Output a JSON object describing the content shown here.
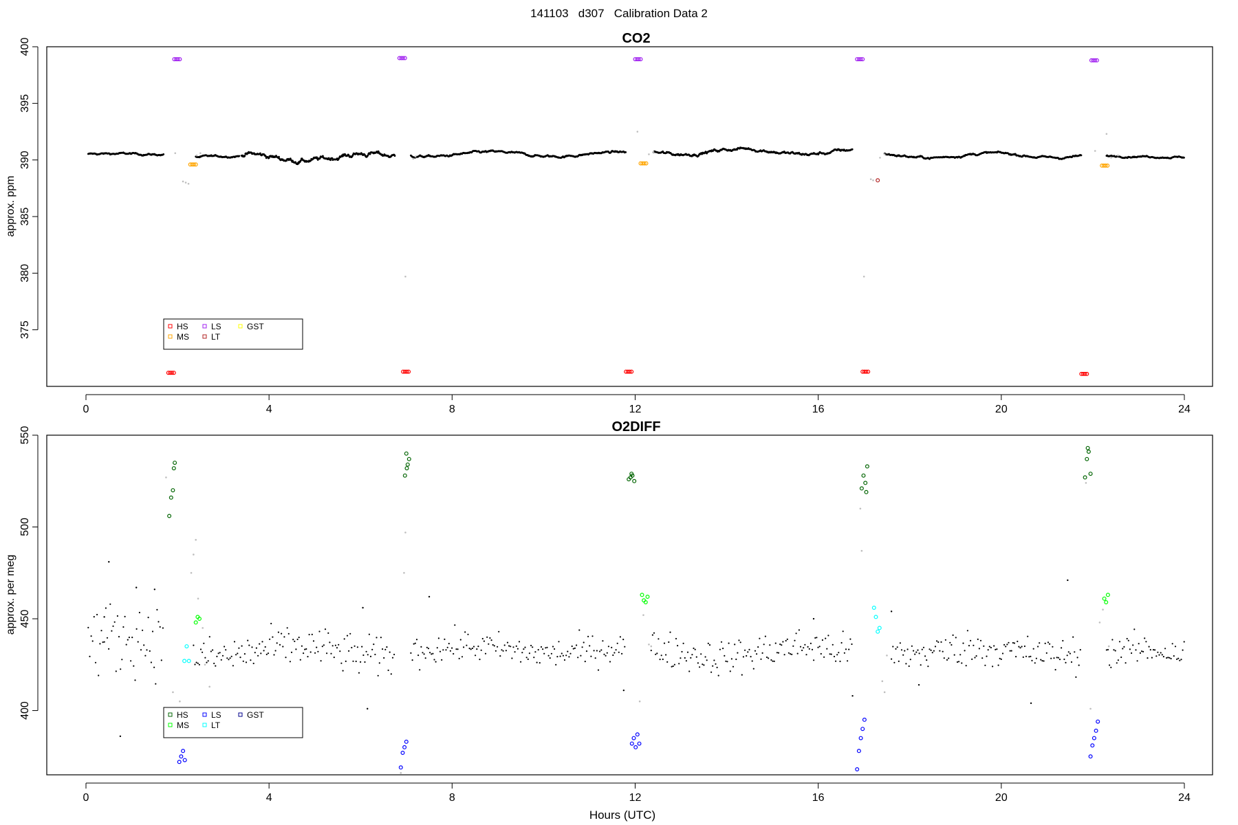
{
  "title": "141103   d307   Calibration Data 2",
  "chart_data": [
    {
      "type": "scatter",
      "title": "CO2",
      "xlabel": "",
      "ylabel": "approx. ppm",
      "xlim": [
        0,
        24
      ],
      "ylim": [
        370,
        400
      ],
      "xticks": [
        0,
        4,
        8,
        12,
        16,
        20,
        24
      ],
      "yticks": [
        375,
        380,
        385,
        390,
        395,
        400
      ],
      "grid": false,
      "legend_position": "bottom-left",
      "legend": [
        {
          "name": "HS",
          "color": "#ff0000"
        },
        {
          "name": "MS",
          "color": "#ffa500"
        },
        {
          "name": "LS",
          "color": "#a020f0"
        },
        {
          "name": "LT",
          "color": "#b22222"
        },
        {
          "name": "GST",
          "color": "#ffff00"
        }
      ],
      "colors": {
        "ambient": "#000000",
        "flag": "#bebebe",
        "HS": "#ff0000",
        "MS": "#ffa500",
        "LS": "#a020f0",
        "LT": "#b22222",
        "GST": "#ffff00"
      },
      "ambient_segments": [
        {
          "x": [
            0.05,
            1.7
          ],
          "y": 390.5,
          "noise": 0.06,
          "wave": 0.05
        },
        {
          "x": [
            2.4,
            3.35
          ],
          "y": 390.3,
          "noise": 0.06,
          "wave": 0.05
        },
        {
          "x": [
            3.4,
            6.75
          ],
          "y": 390.25,
          "noise": 0.15,
          "wave": 0.3
        },
        {
          "x": [
            7.1,
            11.8
          ],
          "y": 390.5,
          "noise": 0.07,
          "wave": 0.2
        },
        {
          "x": [
            12.4,
            16.75
          ],
          "y": 390.75,
          "noise": 0.1,
          "wave": 0.25
        },
        {
          "x": [
            17.45,
            21.75
          ],
          "y": 390.4,
          "noise": 0.07,
          "wave": 0.2
        },
        {
          "x": [
            22.3,
            24.0
          ],
          "y": 390.3,
          "noise": 0.05,
          "wave": 0.05
        }
      ],
      "flagged_points": [
        {
          "x": 1.95,
          "y": 390.6
        },
        {
          "x": 2.12,
          "y": 388.1
        },
        {
          "x": 2.18,
          "y": 388.0
        },
        {
          "x": 2.24,
          "y": 387.9
        },
        {
          "x": 2.42,
          "y": 390.4
        },
        {
          "x": 2.5,
          "y": 390.6
        },
        {
          "x": 6.98,
          "y": 379.7
        },
        {
          "x": 7.15,
          "y": 390.1
        },
        {
          "x": 7.2,
          "y": 390.3
        },
        {
          "x": 12.05,
          "y": 392.5
        },
        {
          "x": 12.3,
          "y": 390.5
        },
        {
          "x": 12.4,
          "y": 390.7
        },
        {
          "x": 17.0,
          "y": 379.7
        },
        {
          "x": 17.15,
          "y": 388.3
        },
        {
          "x": 17.2,
          "y": 388.2
        },
        {
          "x": 17.35,
          "y": 390.2
        },
        {
          "x": 17.45,
          "y": 390.5
        },
        {
          "x": 22.05,
          "y": 390.8
        },
        {
          "x": 22.3,
          "y": 392.3
        },
        {
          "x": 22.4,
          "y": 390.2
        },
        {
          "x": 22.55,
          "y": 390.4
        }
      ],
      "calibration_series": [
        {
          "name": "HS",
          "x": [
            1.8,
            1.84,
            1.88,
            1.92,
            6.93,
            6.97,
            7.01,
            7.05,
            11.8,
            11.84,
            11.88,
            11.92,
            16.97,
            17.01,
            17.05,
            17.09,
            21.75,
            21.79,
            21.83,
            21.87
          ],
          "y": [
            371.2,
            371.2,
            371.2,
            371.2,
            371.3,
            371.3,
            371.3,
            371.3,
            371.3,
            371.3,
            371.3,
            371.3,
            371.3,
            371.3,
            371.3,
            371.3,
            371.1,
            371.1,
            371.1,
            371.1
          ]
        },
        {
          "name": "LS",
          "x": [
            1.93,
            1.97,
            2.01,
            2.05,
            6.85,
            6.89,
            6.93,
            6.97,
            12.0,
            12.04,
            12.08,
            12.12,
            16.85,
            16.89,
            16.93,
            16.97,
            21.97,
            22.01,
            22.05,
            22.09
          ],
          "y": [
            398.9,
            398.9,
            398.9,
            398.9,
            399.0,
            399.0,
            399.0,
            399.0,
            398.9,
            398.9,
            398.9,
            398.9,
            398.9,
            398.9,
            398.9,
            398.9,
            398.8,
            398.8,
            398.8,
            398.8
          ]
        },
        {
          "name": "MS",
          "x": [
            2.28,
            2.32,
            2.36,
            2.4,
            12.12,
            12.16,
            12.2,
            12.24,
            22.2,
            22.24,
            22.28,
            22.32
          ],
          "y": [
            389.6,
            389.6,
            389.6,
            389.6,
            389.7,
            389.7,
            389.7,
            389.7,
            389.5,
            389.5,
            389.5,
            389.5
          ]
        },
        {
          "name": "LT",
          "x": [
            17.3
          ],
          "y": [
            388.2
          ]
        }
      ]
    },
    {
      "type": "scatter",
      "title": "O2DIFF",
      "xlabel": "Hours (UTC)",
      "ylabel": "approx. per meg",
      "xlim": [
        0,
        24
      ],
      "ylim": [
        365,
        550
      ],
      "xticks": [
        0,
        4,
        8,
        12,
        16,
        20,
        24
      ],
      "yticks": [
        400,
        450,
        500,
        550
      ],
      "grid": false,
      "legend_position": "bottom-left",
      "legend": [
        {
          "name": "HS",
          "color": "#006400"
        },
        {
          "name": "MS",
          "color": "#00ff00"
        },
        {
          "name": "LS",
          "color": "#0000ff"
        },
        {
          "name": "LT",
          "color": "#00ffff"
        },
        {
          "name": "GST",
          "color": "#00008b"
        }
      ],
      "colors": {
        "ambient": "#000000",
        "flag": "#bebebe",
        "HS": "#006400",
        "MS": "#00ff00",
        "LS": "#0000ff",
        "LT": "#00ffff",
        "GST": "#00008b"
      },
      "ambient_segments": [
        {
          "x": [
            0.05,
            1.7
          ],
          "y": 437,
          "noise": 14,
          "wave": 3
        },
        {
          "x": [
            2.35,
            6.75
          ],
          "y": 432,
          "noise": 8,
          "wave": 3
        },
        {
          "x": [
            7.1,
            11.8
          ],
          "y": 433,
          "noise": 6,
          "wave": 2
        },
        {
          "x": [
            12.35,
            16.75
          ],
          "y": 432,
          "noise": 7,
          "wave": 3
        },
        {
          "x": [
            17.6,
            21.75
          ],
          "y": 432,
          "noise": 7,
          "wave": 2
        },
        {
          "x": [
            22.3,
            24.0
          ],
          "y": 431,
          "noise": 6,
          "wave": 2
        }
      ],
      "outlier_points": [
        {
          "x": 0.5,
          "y": 481
        },
        {
          "x": 0.75,
          "y": 386
        },
        {
          "x": 0.4,
          "y": 451
        },
        {
          "x": 1.1,
          "y": 467
        },
        {
          "x": 1.5,
          "y": 466
        },
        {
          "x": 6.15,
          "y": 401
        },
        {
          "x": 6.05,
          "y": 456
        },
        {
          "x": 7.5,
          "y": 462
        },
        {
          "x": 11.75,
          "y": 411
        },
        {
          "x": 15.9,
          "y": 450
        },
        {
          "x": 16.75,
          "y": 408
        },
        {
          "x": 17.6,
          "y": 454
        },
        {
          "x": 18.2,
          "y": 414
        },
        {
          "x": 20.65,
          "y": 404
        },
        {
          "x": 21.45,
          "y": 471
        }
      ],
      "flagged_points": [
        {
          "x": 1.75,
          "y": 527
        },
        {
          "x": 1.9,
          "y": 410
        },
        {
          "x": 2.05,
          "y": 405
        },
        {
          "x": 2.3,
          "y": 475
        },
        {
          "x": 2.35,
          "y": 485
        },
        {
          "x": 2.4,
          "y": 493
        },
        {
          "x": 2.45,
          "y": 461
        },
        {
          "x": 2.55,
          "y": 445
        },
        {
          "x": 2.6,
          "y": 425
        },
        {
          "x": 2.7,
          "y": 413
        },
        {
          "x": 6.88,
          "y": 366
        },
        {
          "x": 6.98,
          "y": 497
        },
        {
          "x": 6.95,
          "y": 475
        },
        {
          "x": 12.1,
          "y": 405
        },
        {
          "x": 12.18,
          "y": 452
        },
        {
          "x": 12.3,
          "y": 436
        },
        {
          "x": 12.35,
          "y": 435
        },
        {
          "x": 16.92,
          "y": 510
        },
        {
          "x": 16.95,
          "y": 487
        },
        {
          "x": 17.4,
          "y": 416
        },
        {
          "x": 17.45,
          "y": 410
        },
        {
          "x": 17.5,
          "y": 430
        },
        {
          "x": 21.85,
          "y": 524
        },
        {
          "x": 21.95,
          "y": 401
        },
        {
          "x": 22.15,
          "y": 448
        },
        {
          "x": 22.22,
          "y": 455
        },
        {
          "x": 22.35,
          "y": 435
        }
      ],
      "calibration_series": [
        {
          "name": "HS",
          "x": [
            1.82,
            1.86,
            1.9,
            1.94,
            1.92,
            6.97,
            7.0,
            7.03,
            7.06,
            7.01,
            11.86,
            11.9,
            11.94,
            11.98,
            11.92,
            16.95,
            16.99,
            17.03,
            17.07,
            17.05,
            21.83,
            21.87,
            21.91,
            21.95,
            21.89
          ],
          "y": [
            506,
            516,
            520,
            535,
            532,
            528,
            540,
            534,
            537,
            532,
            526,
            527,
            528,
            525,
            529,
            521,
            528,
            524,
            533,
            519,
            527,
            537,
            541,
            529,
            543
          ]
        },
        {
          "name": "MS",
          "x": [
            2.4,
            2.44,
            2.48,
            12.15,
            12.19,
            12.23,
            12.27,
            22.25,
            22.29,
            22.33
          ],
          "y": [
            448,
            451,
            450,
            463,
            460,
            459,
            462,
            461,
            459,
            463
          ]
        },
        {
          "name": "LS",
          "x": [
            2.0,
            2.04,
            2.08,
            2.12,
            2.16,
            6.88,
            6.92,
            6.96,
            7.0,
            11.93,
            11.97,
            12.01,
            12.05,
            12.09,
            16.85,
            16.89,
            16.93,
            16.97,
            17.01,
            21.95,
            21.99,
            22.03,
            22.07,
            22.11
          ],
          "y": [
            398,
            372,
            375,
            378,
            373,
            369,
            377,
            380,
            383,
            382,
            385,
            380,
            387,
            382,
            368,
            378,
            385,
            390,
            395,
            375,
            381,
            385,
            389,
            394
          ]
        },
        {
          "name": "LT",
          "x": [
            2.15,
            2.2,
            2.25,
            17.22,
            17.26,
            17.3,
            17.34
          ],
          "y": [
            427,
            435,
            427,
            456,
            451,
            443,
            445
          ]
        }
      ]
    }
  ]
}
